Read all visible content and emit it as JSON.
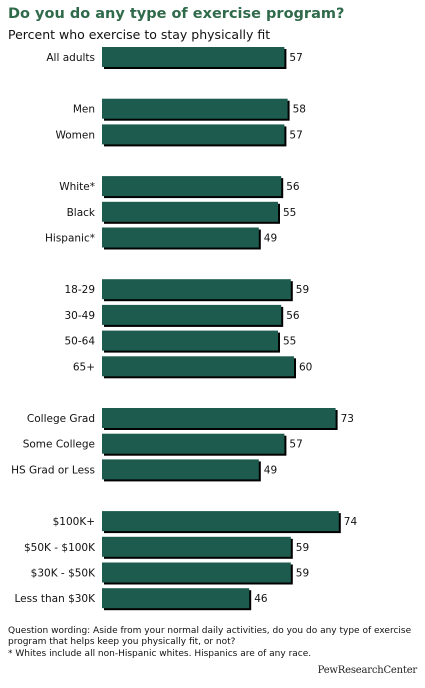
{
  "chart_data": {
    "type": "bar",
    "orientation": "horizontal",
    "title": "Do you do any type of exercise program?",
    "subtitle": "Percent who exercise to stay physically fit",
    "bar_color": "#1e5b4f",
    "bar_shadow_color": "#000000",
    "xlim": [
      0,
      100
    ],
    "groups": [
      {
        "bars": [
          {
            "label": "All adults",
            "value": 57
          }
        ]
      },
      {
        "bars": [
          {
            "label": "Men",
            "value": 58
          },
          {
            "label": "Women",
            "value": 57
          }
        ]
      },
      {
        "bars": [
          {
            "label": "White*",
            "value": 56
          },
          {
            "label": "Black",
            "value": 55
          },
          {
            "label": "Hispanic*",
            "value": 49
          }
        ]
      },
      {
        "bars": [
          {
            "label": "18-29",
            "value": 59
          },
          {
            "label": "30-49",
            "value": 56
          },
          {
            "label": "50-64",
            "value": 55
          },
          {
            "label": "65+",
            "value": 60
          }
        ]
      },
      {
        "bars": [
          {
            "label": "College Grad",
            "value": 73
          },
          {
            "label": "Some College",
            "value": 57
          },
          {
            "label": "HS Grad or Less",
            "value": 49
          }
        ]
      },
      {
        "bars": [
          {
            "label": "$100K+",
            "value": 74
          },
          {
            "label": "$50K - $100K",
            "value": 59
          },
          {
            "label": "$30K - $50K",
            "value": 59
          },
          {
            "label": "Less than $30K",
            "value": 46
          }
        ]
      }
    ]
  },
  "notes": {
    "question_wording": "Question wording: Aside from your normal daily activities, do you do any type of exercise program that helps keep you physically fit, or not?",
    "footnote": "* Whites include all non-Hispanic whites.  Hispanics are of any race."
  },
  "source": "PewResearchCenter",
  "colors": {
    "title": "#2f6a4a",
    "bar": "#1e5b4f"
  }
}
